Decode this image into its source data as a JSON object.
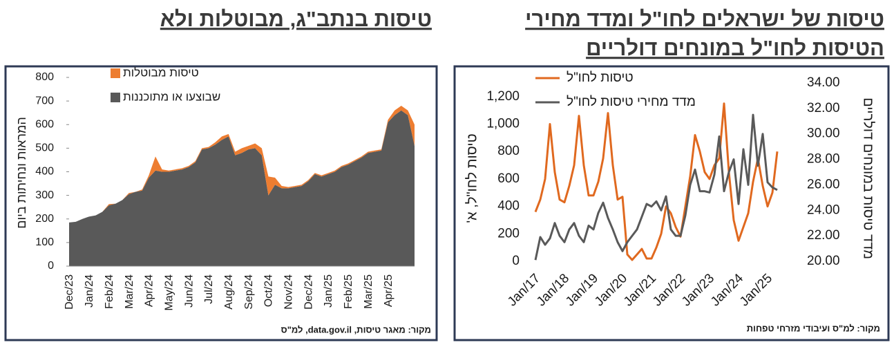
{
  "chart_data": [
    {
      "type": "area",
      "stacked": true,
      "title": "טיסות בנתב\"ג, מבוטלות ולא",
      "ylabel": "המראות ונחיתות ביום",
      "source": "מקור: מאגר טיסות, data.gov.il, למ\"ס",
      "legend": "top-left",
      "categories": [
        "Dec/23",
        null,
        null,
        "Jan/24",
        null,
        null,
        "Feb/24",
        null,
        null,
        "Mar/24",
        null,
        null,
        "Apr/24",
        null,
        null,
        "May/24",
        null,
        null,
        "Jun/24",
        null,
        null,
        "Jul/24",
        null,
        null,
        "Aug/24",
        null,
        null,
        "Sep/24",
        null,
        null,
        "Oct/24",
        null,
        null,
        "Nov/24",
        null,
        null,
        "Dec/24",
        null,
        null,
        "Jan/25",
        null,
        null,
        "Feb/25",
        null,
        null,
        "Mar/25",
        null,
        null,
        "Apr/25",
        null,
        null,
        null,
        null
      ],
      "series": [
        {
          "name": "שבוצעו או מתוכננות",
          "color": "#595959",
          "values": [
            185,
            188,
            200,
            210,
            215,
            230,
            258,
            265,
            280,
            305,
            315,
            320,
            375,
            405,
            400,
            400,
            405,
            410,
            420,
            440,
            495,
            500,
            515,
            535,
            550,
            470,
            480,
            495,
            500,
            470,
            300,
            345,
            330,
            330,
            335,
            340,
            360,
            390,
            380,
            390,
            400,
            420,
            430,
            445,
            460,
            480,
            485,
            490,
            610,
            640,
            660,
            640,
            510
          ]
        },
        {
          "name": "טיסות מבוטלות",
          "color": "#ed7d31",
          "values": [
            0,
            0,
            0,
            0,
            0,
            0,
            5,
            0,
            0,
            5,
            0,
            5,
            10,
            60,
            10,
            5,
            5,
            5,
            5,
            5,
            5,
            5,
            10,
            15,
            10,
            15,
            20,
            15,
            20,
            30,
            80,
            30,
            10,
            5,
            5,
            5,
            5,
            5,
            5,
            5,
            5,
            5,
            5,
            5,
            5,
            5,
            5,
            5,
            10,
            20,
            20,
            20,
            90
          ]
        }
      ],
      "ylim": [
        0,
        800
      ],
      "yticks": [
        0,
        100,
        200,
        300,
        400,
        500,
        600,
        700,
        800
      ]
    },
    {
      "type": "line",
      "title": [
        "טיסות של ישראלים לחו\"ל ומדד מחירי",
        "הטיסות לחו\"ל במונחים דולריים"
      ],
      "ylabel": "טיסות לחו\"ל, א'",
      "y2label": "מדד טיסות במונחים דולריים",
      "source": "מקור: למ\"ס ועיבודי מזרחי טפחות",
      "legend": "top-left",
      "categories": [
        "Jan/17",
        null,
        null,
        null,
        null,
        null,
        "Jan/18",
        null,
        null,
        null,
        null,
        null,
        "Jan/19",
        null,
        null,
        null,
        null,
        null,
        "Jan/20",
        null,
        null,
        null,
        null,
        null,
        "Jan/21",
        null,
        null,
        null,
        null,
        null,
        "Jan/22",
        null,
        null,
        null,
        null,
        null,
        "Jan/23",
        null,
        null,
        null,
        null,
        null,
        "Jan/24",
        null,
        null,
        null,
        null,
        null,
        "Jan/25",
        null,
        null
      ],
      "series": [
        {
          "name": "טיסות לחו\"ל",
          "color": "#e0691f",
          "values": [
            360,
            450,
            600,
            1000,
            650,
            450,
            430,
            550,
            700,
            1060,
            700,
            480,
            480,
            580,
            750,
            1080,
            700,
            450,
            470,
            50,
            10,
            50,
            90,
            20,
            20,
            100,
            200,
            400,
            350,
            250,
            180,
            400,
            620,
            920,
            800,
            650,
            600,
            700,
            750,
            1150,
            650,
            300,
            150,
            250,
            350,
            580,
            750,
            550,
            400,
            500,
            800
          ]
        },
        {
          "name": "מדד מחירי טיסות לחו\"ל",
          "color": "#595959",
          "axis": "y2",
          "values": [
            20.1,
            21.9,
            21.3,
            21.8,
            23.0,
            22.0,
            21.5,
            22.5,
            23.0,
            22.0,
            21.5,
            22.8,
            22.5,
            23.8,
            24.6,
            23.4,
            22.5,
            21.5,
            20.8,
            21.5,
            22.0,
            22.5,
            23.5,
            24.5,
            24.3,
            24.7,
            24.0,
            25.1,
            22.5,
            22.0,
            22.0,
            23.6,
            26.0,
            27.2,
            25.5,
            25.5,
            25.4,
            26.8,
            29.8,
            25.5,
            27.0,
            28.0,
            24.5,
            28.8,
            26.0,
            31.5,
            27.5,
            30.0,
            26.2,
            25.8,
            25.6
          ]
        }
      ],
      "ylim": [
        0,
        1300
      ],
      "yticks": [
        0,
        200,
        400,
        600,
        800,
        {
          "value": 1000,
          "label": "1,000"
        },
        {
          "value": 1200,
          "label": "1,200"
        }
      ],
      "y2lim": [
        20,
        34
      ],
      "y2ticks": [
        {
          "value": 20,
          "label": "20.00"
        },
        {
          "value": 22,
          "label": "22.00"
        },
        {
          "value": 24,
          "label": "24.00"
        },
        {
          "value": 26,
          "label": "26.00"
        },
        {
          "value": 28,
          "label": "28.00"
        },
        {
          "value": 30,
          "label": "30.00"
        },
        {
          "value": 32,
          "label": "32.00"
        },
        {
          "value": 34,
          "label": "34.00"
        }
      ]
    }
  ]
}
